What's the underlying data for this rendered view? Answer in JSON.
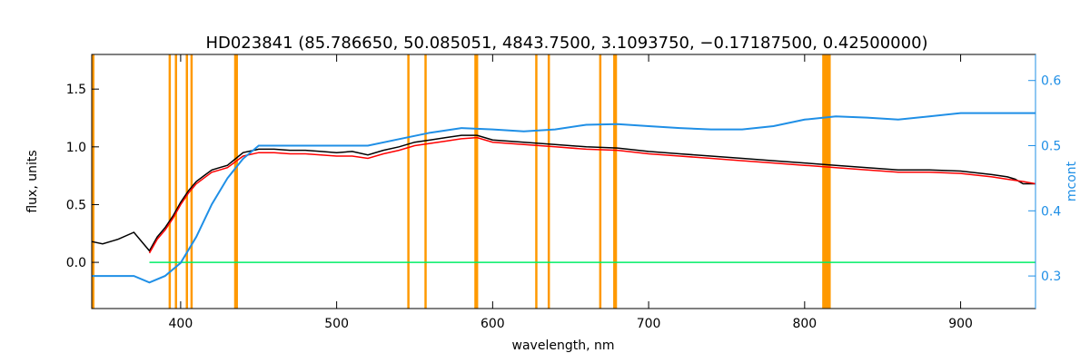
{
  "chart_data": {
    "type": "line",
    "title": "HD023841    (85.786650, 50.085051, 4843.7500, 3.1093750, −0.17187500, 0.42500000)",
    "xlabel": "wavelength, nm",
    "ylabel": "flux, units",
    "y2label": "mcont",
    "xlim": [
      343,
      948
    ],
    "ylim": [
      -0.4,
      1.8
    ],
    "y2lim": [
      0.25,
      0.64
    ],
    "xticks": [
      400,
      500,
      600,
      700,
      800,
      900
    ],
    "yticks": [
      0.0,
      0.5,
      1.0,
      1.5
    ],
    "y2ticks": [
      0.3,
      0.4,
      0.5,
      0.6
    ],
    "xtick_labels": [
      "400",
      "500",
      "600",
      "700",
      "800",
      "900"
    ],
    "ytick_labels": [
      "0.0",
      "0.5",
      "1.0",
      "1.5"
    ],
    "y2tick_labels": [
      "0.3",
      "0.4",
      "0.5",
      "0.6"
    ],
    "grid": false,
    "colors": {
      "observed": "#000000",
      "model": "#ff0000",
      "residual": "#00ee66",
      "continuum": "#1f8fe6",
      "masks": "#ff9900",
      "axis": "#000000",
      "right_axis": "#1f8fe6"
    },
    "mask_lines": [
      344,
      393,
      397,
      404,
      407,
      435,
      436,
      546,
      557,
      589,
      590,
      628,
      636,
      669,
      678,
      679,
      812,
      813,
      814,
      815,
      816
    ],
    "series": [
      {
        "role": "observed",
        "x": [
          343,
          350,
          360,
          370,
          380,
          385,
          390,
          395,
          400,
          405,
          410,
          415,
          420,
          425,
          430,
          440,
          450,
          460,
          470,
          480,
          490,
          500,
          510,
          520,
          530,
          540,
          550,
          560,
          570,
          580,
          590,
          600,
          620,
          640,
          660,
          680,
          700,
          720,
          740,
          760,
          780,
          800,
          820,
          840,
          860,
          880,
          900,
          920,
          930,
          935,
          940,
          948
        ],
        "y": [
          0.18,
          0.16,
          0.2,
          0.26,
          0.1,
          0.22,
          0.3,
          0.4,
          0.52,
          0.62,
          0.7,
          0.75,
          0.8,
          0.82,
          0.84,
          0.95,
          0.98,
          0.98,
          0.97,
          0.97,
          0.96,
          0.95,
          0.96,
          0.93,
          0.97,
          1.0,
          1.04,
          1.06,
          1.08,
          1.1,
          1.1,
          1.06,
          1.04,
          1.02,
          1.0,
          0.99,
          0.96,
          0.94,
          0.92,
          0.9,
          0.88,
          0.86,
          0.84,
          0.82,
          0.8,
          0.8,
          0.79,
          0.76,
          0.74,
          0.72,
          0.68,
          0.68
        ]
      },
      {
        "role": "model",
        "x": [
          380,
          385,
          390,
          395,
          400,
          405,
          410,
          415,
          420,
          425,
          430,
          440,
          450,
          460,
          470,
          480,
          490,
          500,
          510,
          520,
          530,
          540,
          550,
          560,
          570,
          580,
          590,
          600,
          620,
          640,
          660,
          680,
          700,
          720,
          740,
          760,
          780,
          800,
          820,
          840,
          860,
          880,
          900,
          920,
          930,
          940,
          948
        ],
        "y": [
          0.08,
          0.2,
          0.28,
          0.38,
          0.5,
          0.6,
          0.68,
          0.73,
          0.78,
          0.8,
          0.82,
          0.92,
          0.95,
          0.95,
          0.94,
          0.94,
          0.93,
          0.92,
          0.92,
          0.9,
          0.94,
          0.97,
          1.01,
          1.03,
          1.05,
          1.07,
          1.08,
          1.04,
          1.02,
          1.0,
          0.98,
          0.97,
          0.94,
          0.92,
          0.9,
          0.88,
          0.86,
          0.84,
          0.82,
          0.8,
          0.78,
          0.78,
          0.77,
          0.74,
          0.72,
          0.7,
          0.68
        ]
      },
      {
        "role": "residual",
        "x": [
          380,
          948
        ],
        "y": [
          0.0,
          0.0
        ]
      },
      {
        "role": "continuum",
        "axis": "right",
        "x": [
          343,
          370,
          380,
          390,
          400,
          410,
          420,
          430,
          440,
          450,
          460,
          480,
          500,
          520,
          540,
          560,
          580,
          600,
          620,
          640,
          660,
          680,
          700,
          720,
          740,
          760,
          780,
          800,
          820,
          840,
          860,
          880,
          900,
          920,
          940,
          948
        ],
        "y": [
          0.3,
          0.3,
          0.29,
          0.3,
          0.32,
          0.36,
          0.41,
          0.45,
          0.48,
          0.5,
          0.5,
          0.5,
          0.5,
          0.5,
          0.51,
          0.52,
          0.527,
          0.525,
          0.522,
          0.525,
          0.532,
          0.533,
          0.53,
          0.527,
          0.525,
          0.525,
          0.53,
          0.54,
          0.545,
          0.543,
          0.54,
          0.545,
          0.55,
          0.55,
          0.55,
          0.55
        ]
      }
    ]
  }
}
